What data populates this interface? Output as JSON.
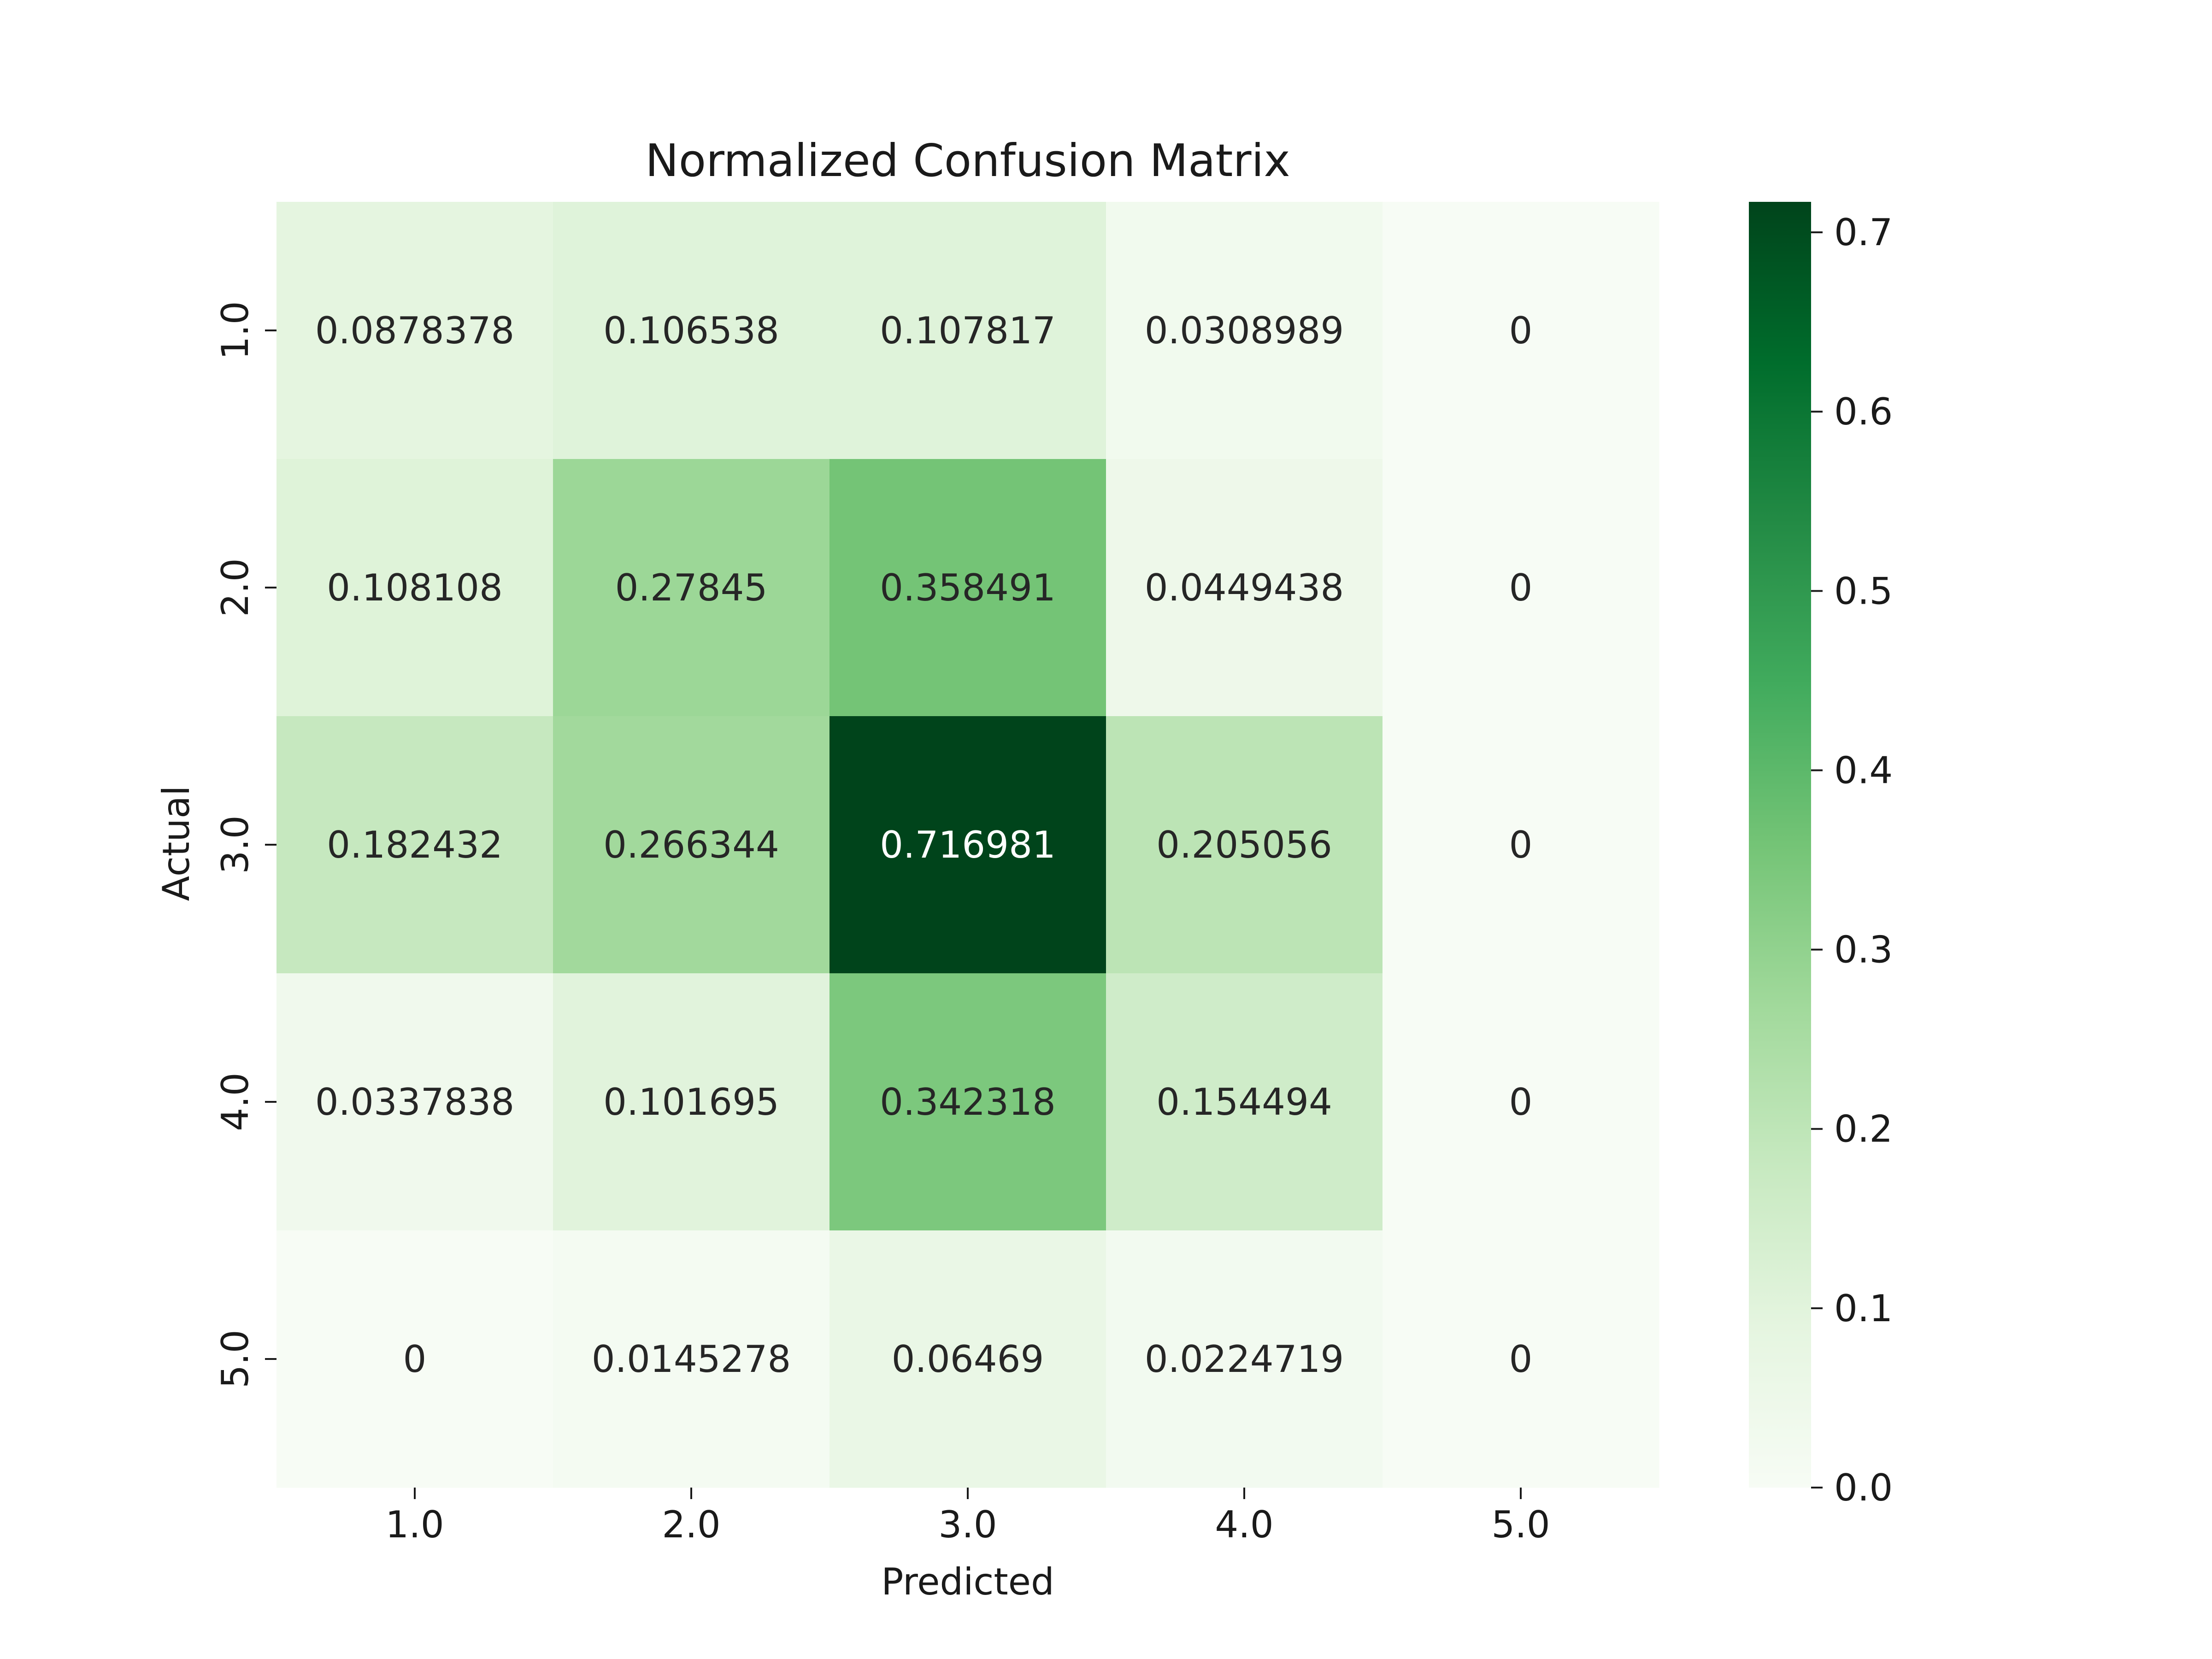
{
  "chart_data": {
    "type": "heatmap",
    "title": "Normalized Confusion Matrix",
    "xlabel": "Predicted",
    "ylabel": "Actual",
    "x_categories": [
      "1.0",
      "2.0",
      "3.0",
      "4.0",
      "5.0"
    ],
    "y_categories": [
      "1.0",
      "2.0",
      "3.0",
      "4.0",
      "5.0"
    ],
    "values": [
      [
        0.0878378,
        0.106538,
        0.107817,
        0.0308989,
        0
      ],
      [
        0.108108,
        0.27845,
        0.358491,
        0.0449438,
        0
      ],
      [
        0.182432,
        0.266344,
        0.716981,
        0.205056,
        0
      ],
      [
        0.0337838,
        0.101695,
        0.342318,
        0.154494,
        0
      ],
      [
        0,
        0.0145278,
        0.06469,
        0.0224719,
        0
      ]
    ],
    "cell_labels": [
      [
        "0.0878378",
        "0.106538",
        "0.107817",
        "0.0308989",
        "0"
      ],
      [
        "0.108108",
        "0.27845",
        "0.358491",
        "0.0449438",
        "0"
      ],
      [
        "0.182432",
        "0.266344",
        "0.716981",
        "0.205056",
        "0"
      ],
      [
        "0.0337838",
        "0.101695",
        "0.342318",
        "0.154494",
        "0"
      ],
      [
        "0",
        "0.0145278",
        "0.06469",
        "0.0224719",
        "0"
      ]
    ],
    "colorbar": {
      "min": 0.0,
      "max": 0.716981,
      "ticks": [
        "0.0",
        "0.1",
        "0.2",
        "0.3",
        "0.4",
        "0.5",
        "0.6",
        "0.7"
      ],
      "colormap": "Greens"
    },
    "grid": false,
    "legend": "none"
  }
}
